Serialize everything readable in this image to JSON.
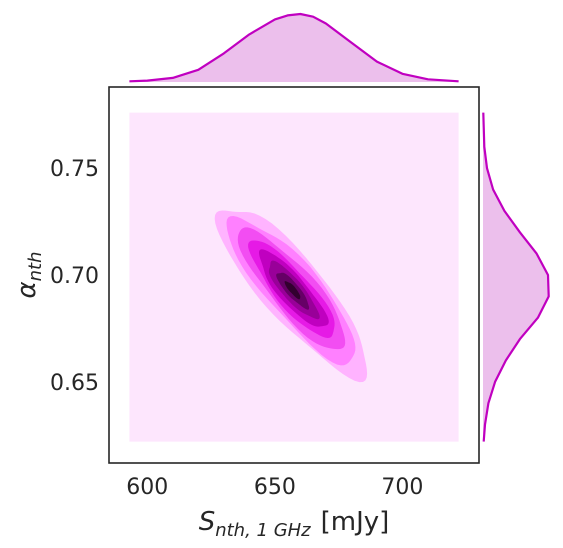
{
  "chart_data": {
    "type": "joint_kde",
    "xlabel": "S_{nth, 1 GHz} [mJy]",
    "xlabel_parts": {
      "base": "S",
      "sub": "nth, 1 GHz",
      "unit": "[mJy]"
    },
    "ylabel": "α_{nth}",
    "ylabel_parts": {
      "base": "α",
      "sub": "nth"
    },
    "xlim": [
      585,
      730
    ],
    "ylim": [
      0.612,
      0.788
    ],
    "x_ticks": [
      600,
      650,
      700
    ],
    "x_tick_labels": [
      "600",
      "650",
      "700"
    ],
    "y_ticks": [
      0.65,
      0.7,
      0.75
    ],
    "y_tick_labels": [
      "0.65",
      "0.70",
      "0.75"
    ],
    "grid": false,
    "colors": {
      "line": "#c000c0",
      "marginal_fill": "#ecbfec",
      "background_fill": "#fde6fd",
      "levels": [
        "#ffb3ff",
        "#ff80ff",
        "#f24df2",
        "#e61ae6",
        "#c000c0",
        "#990099",
        "#660066",
        "#33002f"
      ]
    },
    "kde": {
      "center": [
        657,
        0.693
      ],
      "std_x": 14,
      "std_y": 0.019,
      "correlation": -0.85,
      "levels_sigma": [
        2.1,
        1.8,
        1.5,
        1.2,
        0.95,
        0.7,
        0.45,
        0.22
      ]
    },
    "marginal_x": {
      "x": [
        593,
        600,
        610,
        620,
        630,
        640,
        650,
        655,
        660,
        665,
        670,
        680,
        690,
        700,
        710,
        722
      ],
      "density": [
        0.01,
        0.02,
        0.06,
        0.18,
        0.42,
        0.7,
        0.92,
        0.98,
        1.0,
        0.96,
        0.86,
        0.58,
        0.3,
        0.12,
        0.04,
        0.01
      ]
    },
    "marginal_y": {
      "y": [
        0.622,
        0.63,
        0.64,
        0.65,
        0.66,
        0.67,
        0.68,
        0.69,
        0.7,
        0.71,
        0.72,
        0.73,
        0.74,
        0.75,
        0.76,
        0.776
      ],
      "density": [
        0.01,
        0.03,
        0.08,
        0.18,
        0.34,
        0.55,
        0.82,
        0.98,
        0.97,
        0.8,
        0.55,
        0.32,
        0.15,
        0.06,
        0.02,
        0.005
      ]
    }
  }
}
